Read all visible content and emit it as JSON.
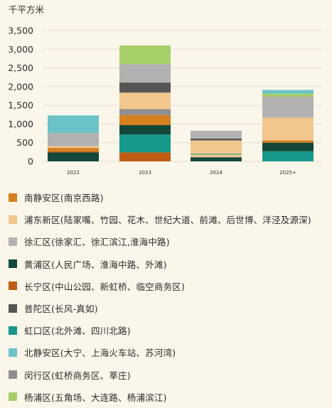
{
  "chart_data": {
    "type": "bar",
    "stacked": true,
    "ylabel": "千平方米",
    "ylim": [
      0,
      3500
    ],
    "yticks": [
      0,
      500,
      1000,
      1500,
      2000,
      2500,
      3000,
      3500
    ],
    "ytick_labels": [
      "0",
      "500",
      "1,000",
      "1,500",
      "2,000",
      "2,500",
      "3,000",
      "3,500"
    ],
    "grid": true,
    "legend_placement": "bottom",
    "categories": [
      "2022",
      "2023",
      "2024",
      "2025+"
    ],
    "series": [
      {
        "name": "南静安区(南京西路)",
        "color": "#d6801f",
        "values": [
          0,
          0,
          0,
          0
        ]
      },
      {
        "name": "浦东新区(陆家嘴、竹园、花木、世纪大道、前滩、后世博、洋泾及源深)",
        "color": "#f2c78e",
        "values": [
          0,
          0,
          0,
          0
        ]
      },
      {
        "name": "徐汇区(徐家汇、徐汇滨江,淮海中路)",
        "color": "#b2b2b2",
        "values": [
          0,
          0,
          0,
          0
        ]
      },
      {
        "name": "黄浦区(人民广场、淮海中路、外滩)",
        "color": "#12473a",
        "values": [
          0,
          0,
          0,
          0
        ]
      },
      {
        "name": "长宁区(中山公园、新虹桥、临空商务区)",
        "color": "#c05c12",
        "values": [
          0,
          0,
          0,
          0
        ]
      },
      {
        "name": "普陀区(长风-真如)",
        "color": "#555555",
        "values": [
          0,
          0,
          0,
          0
        ]
      },
      {
        "name": "虹口区(北外滩、四川北路)",
        "color": "#17998c",
        "values": [
          0,
          0,
          0,
          0
        ]
      },
      {
        "name": "北静安区(大宁、上海火车站、苏河湾)",
        "color": "#6cc3c7",
        "values": [
          0,
          0,
          0,
          0
        ]
      },
      {
        "name": "闵行区(虹桥商务区、莘庄)",
        "color": "#8f8f8f",
        "values": [
          0,
          0,
          0,
          0
        ]
      },
      {
        "name": "杨浦区(五角场、大连路、杨浦滨江)",
        "color": "#a6cf6a",
        "values": [
          0,
          0,
          0,
          0
        ]
      }
    ],
    "stacks": [
      [
        {
          "series": "黄浦区(人民广场、淮海中路、外滩)",
          "value": 240
        },
        {
          "series": "长宁区(中山公园、新虹桥、临空商务区)",
          "value": 30
        },
        {
          "series": "南静安区(南京西路)",
          "value": 90
        },
        {
          "series": "浦东新区(陆家嘴、竹园、花木、世纪大道、前滩、后世博、洋泾及源深)",
          "value": 50
        },
        {
          "series": "徐汇区(徐家汇、徐汇滨江,淮海中路)",
          "value": 350
        },
        {
          "series": "北静安区(大宁、上海火车站、苏河湾)",
          "value": 470
        }
      ],
      [
        {
          "series": "长宁区(中山公园、新虹桥、临空商务区)",
          "value": 240
        },
        {
          "series": "虹口区(北外滩、四川北路)",
          "value": 480
        },
        {
          "series": "黄浦区(人民广场、淮海中路、外滩)",
          "value": 250
        },
        {
          "series": "南静安区(南京西路)",
          "value": 270
        },
        {
          "series": "闵行区(虹桥商务区、莘庄)",
          "value": 160
        },
        {
          "series": "浦东新区(陆家嘴、竹园、花木、世纪大道、前滩、后世博、洋泾及源深)",
          "value": 440
        },
        {
          "series": "普陀区(长风-真如)",
          "value": 270
        },
        {
          "series": "徐汇区(徐家汇、徐汇滨江,淮海中路)",
          "value": 490
        },
        {
          "series": "杨浦区(五角场、大连路、杨浦滨江)",
          "value": 500
        }
      ],
      [
        {
          "series": "黄浦区(人民广场、淮海中路、外滩)",
          "value": 110
        },
        {
          "series": "浦东新区(陆家嘴、竹园、花木、世纪大道、前滩、后世博、洋泾及源深)",
          "value": 70
        },
        {
          "series": "虹口区(北外滩、四川北路)",
          "value": 20
        },
        {
          "series": "浦东新区(陆家嘴、竹园、花木、世纪大道、前滩、后世博、洋泾及源深)",
          "value": 360
        },
        {
          "series": "普陀区(长风-真如)",
          "value": 50
        },
        {
          "series": "徐汇区(徐家汇、徐汇滨江,淮海中路)",
          "value": 210
        }
      ],
      [
        {
          "series": "虹口区(北外滩、四川北路)",
          "value": 270
        },
        {
          "series": "黄浦区(人民广场、淮海中路、外滩)",
          "value": 230
        },
        {
          "series": "南静安区(南京西路)",
          "value": 60
        },
        {
          "series": "浦东新区(陆家嘴、竹园、花木、世纪大道、前滩、后世博、洋泾及源深)",
          "value": 610
        },
        {
          "series": "徐汇区(徐家汇、徐汇滨江,淮海中路)",
          "value": 560
        },
        {
          "series": "杨浦区(五角场、大连路、杨浦滨江)",
          "value": 80
        },
        {
          "series": "北静安区(大宁、上海火车站、苏河湾)",
          "value": 100
        }
      ]
    ]
  }
}
